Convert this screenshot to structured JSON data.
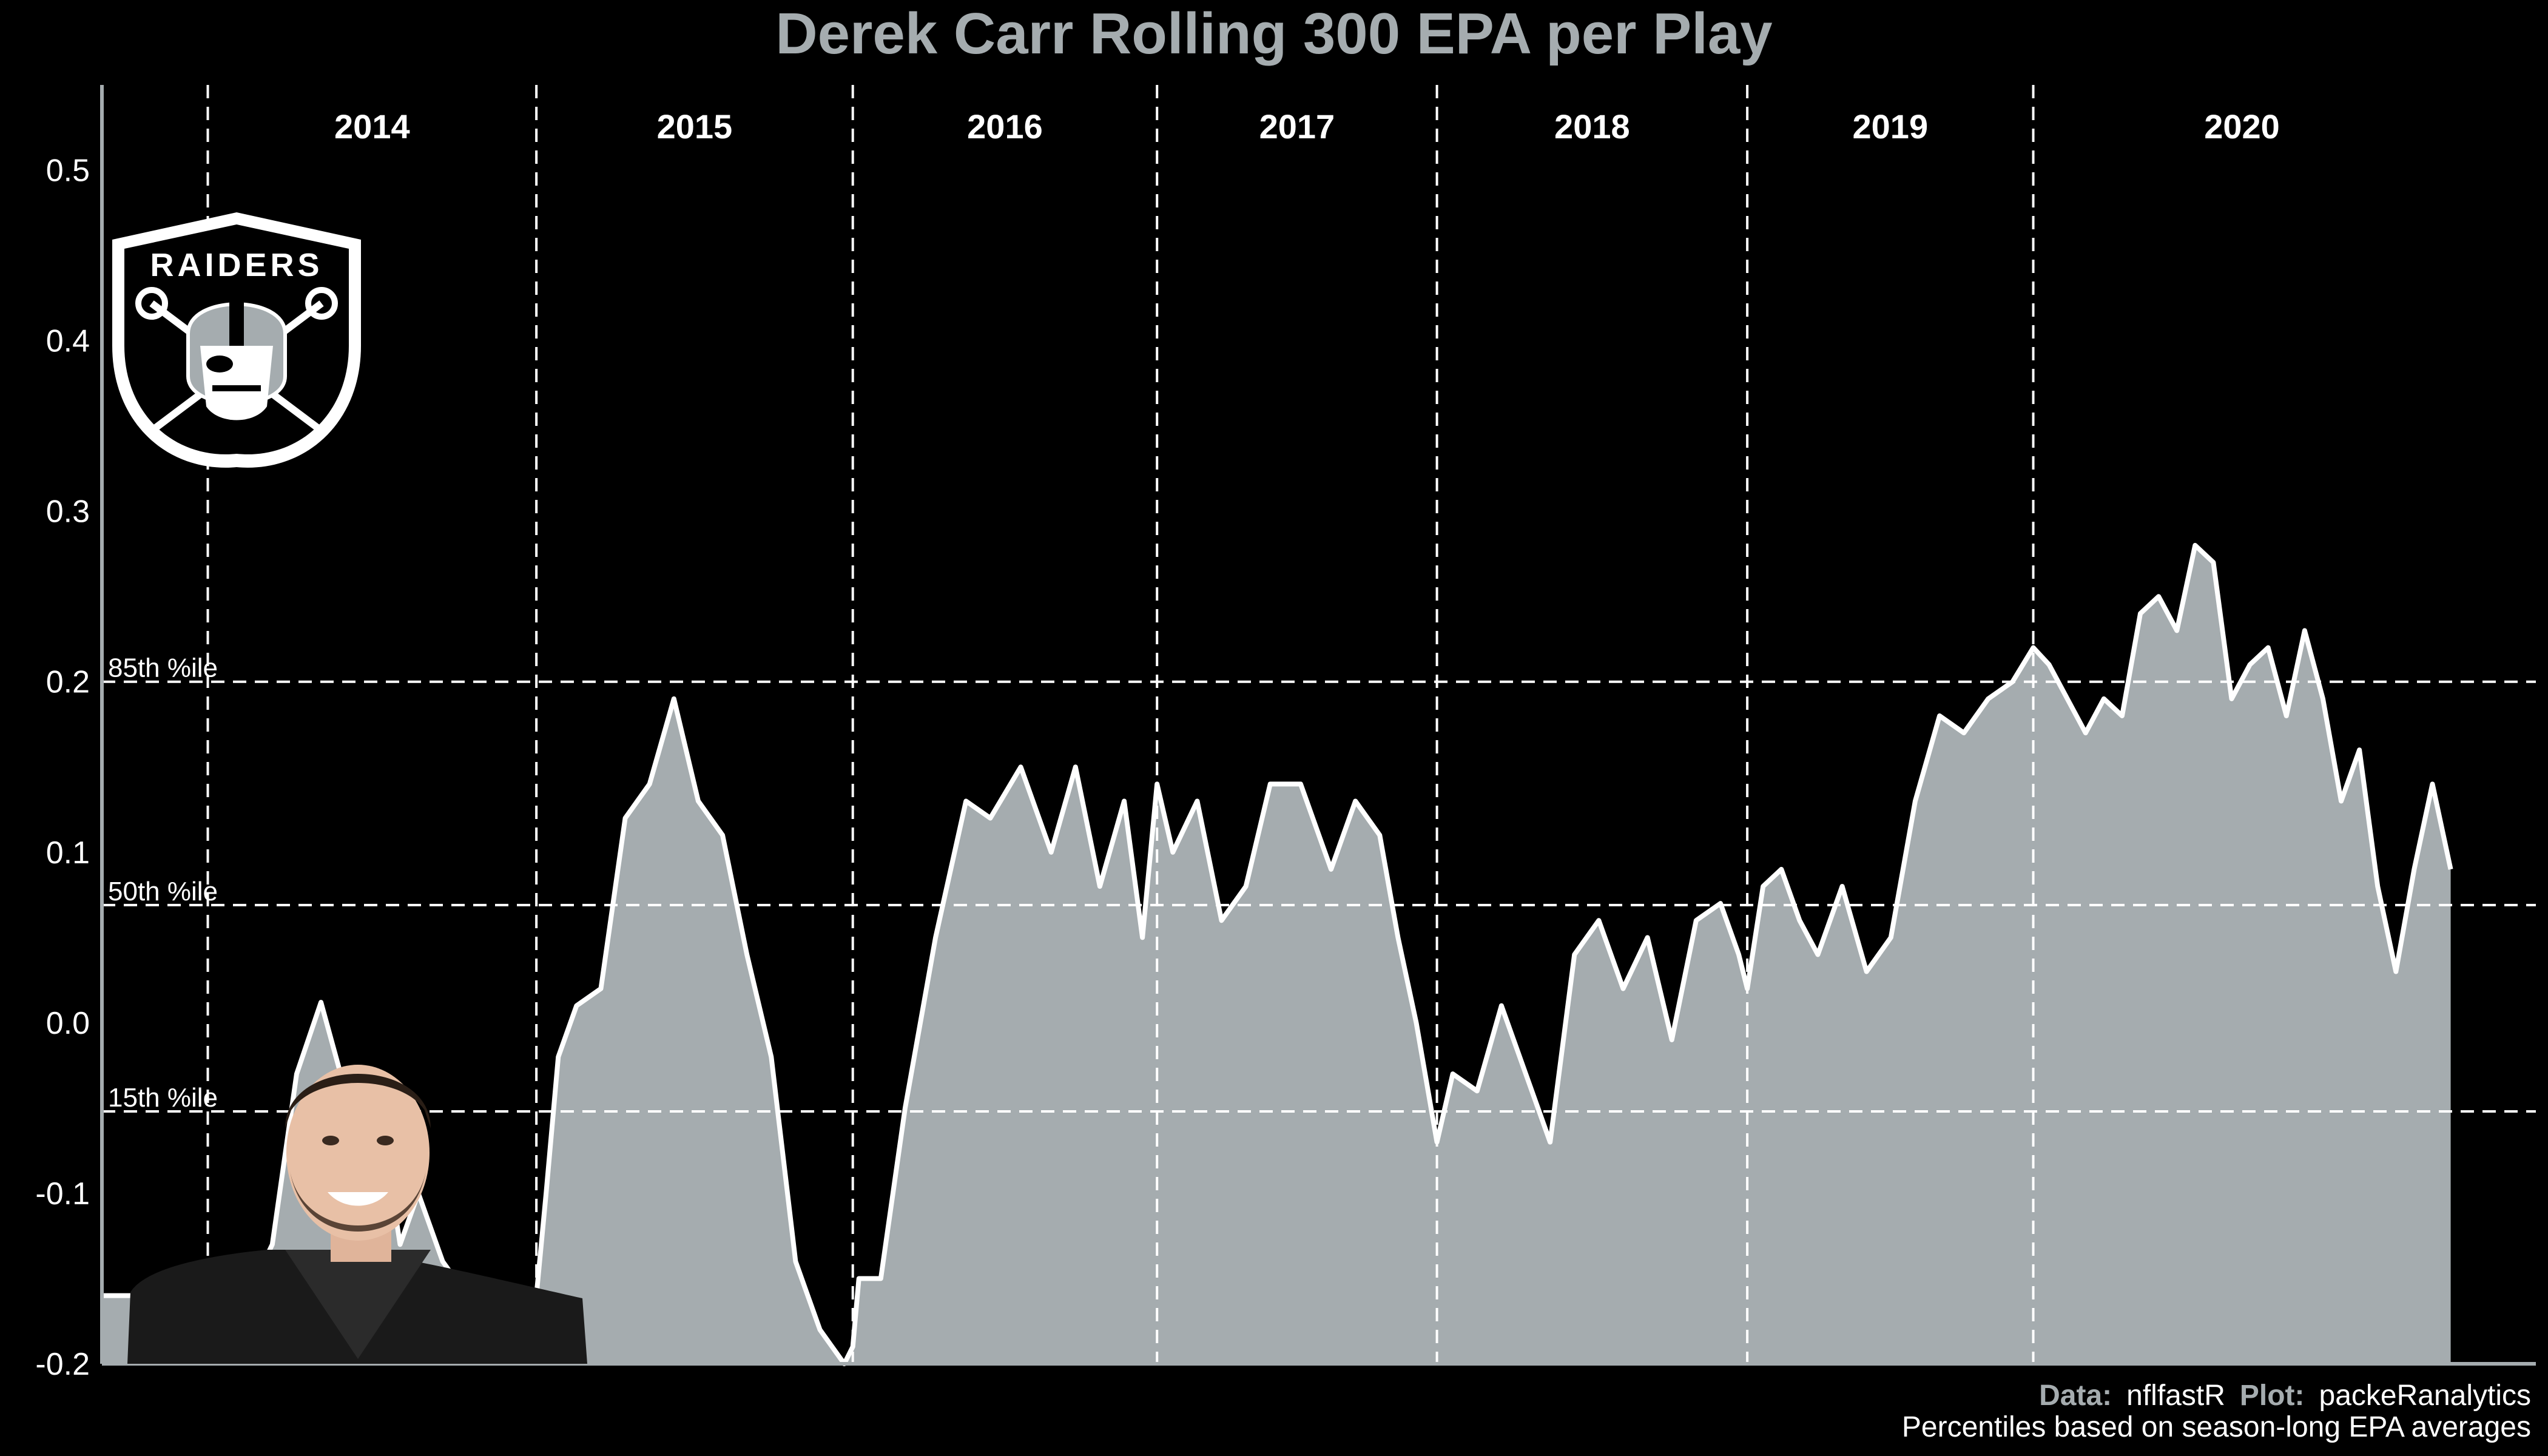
{
  "chart_data": {
    "type": "area",
    "title": "Derek Carr Rolling 300 EPA per Play",
    "xlabel": "",
    "ylabel": "",
    "ylim": [
      -0.2,
      0.55
    ],
    "y_ticks": [
      "-0.2",
      "-0.1",
      "0.0",
      "0.1",
      "0.2",
      "0.3",
      "0.4",
      "0.5"
    ],
    "grid": false,
    "fill_color": "#A5ACAF",
    "line_color": "#ffffff",
    "background": "#000000",
    "seasons": [
      "2014",
      "2015",
      "2016",
      "2017",
      "2018",
      "2019",
      "2020"
    ],
    "season_breaks": [
      0.087,
      0.357,
      0.617,
      0.867,
      1.097,
      1.352,
      1.587
    ],
    "x_range": [
      0,
      2.0
    ],
    "percentiles": [
      {
        "label": "85th %ile",
        "value": 0.2
      },
      {
        "label": "50th %ile",
        "value": 0.069
      },
      {
        "label": "15th %ile",
        "value": -0.052
      }
    ],
    "series": [
      {
        "x": [
          0.0,
          0.087,
          0.12,
          0.14,
          0.16,
          0.18,
          0.2,
          0.215,
          0.23,
          0.245,
          0.26,
          0.28,
          0.3,
          0.32,
          0.335,
          0.35,
          0.357,
          0.365,
          0.375,
          0.39,
          0.41,
          0.43,
          0.45,
          0.47,
          0.49,
          0.51,
          0.53,
          0.55,
          0.57,
          0.59,
          0.6,
          0.61,
          0.617,
          0.622,
          0.64,
          0.66,
          0.685,
          0.71,
          0.73,
          0.755,
          0.78,
          0.8,
          0.82,
          0.84,
          0.855,
          0.867,
          0.88,
          0.9,
          0.92,
          0.94,
          0.96,
          0.985,
          1.01,
          1.03,
          1.05,
          1.065,
          1.08,
          1.097,
          1.11,
          1.13,
          1.15,
          1.17,
          1.19,
          1.21,
          1.23,
          1.25,
          1.27,
          1.29,
          1.31,
          1.33,
          1.345,
          1.352,
          1.365,
          1.38,
          1.395,
          1.41,
          1.43,
          1.45,
          1.47,
          1.49,
          1.51,
          1.53,
          1.55,
          1.57,
          1.587,
          1.6,
          1.615,
          1.63,
          1.645,
          1.66,
          1.675,
          1.69,
          1.705,
          1.72,
          1.735,
          1.75,
          1.765,
          1.78,
          1.795,
          1.81,
          1.825,
          1.84,
          1.855,
          1.87,
          1.885,
          1.9,
          1.915,
          1.93
        ],
        "values": [
          -0.16,
          -0.16,
          -0.16,
          -0.13,
          -0.03,
          0.012,
          -0.04,
          -0.09,
          -0.06,
          -0.13,
          -0.1,
          -0.14,
          -0.16,
          -0.16,
          -0.16,
          -0.16,
          -0.16,
          -0.1,
          -0.02,
          0.01,
          0.02,
          0.12,
          0.14,
          0.19,
          0.13,
          0.11,
          0.04,
          -0.02,
          -0.14,
          -0.18,
          -0.19,
          -0.2,
          -0.19,
          -0.15,
          -0.15,
          -0.05,
          0.05,
          0.13,
          0.12,
          0.15,
          0.1,
          0.15,
          0.08,
          0.13,
          0.05,
          0.14,
          0.1,
          0.13,
          0.06,
          0.08,
          0.14,
          0.14,
          0.09,
          0.13,
          0.11,
          0.05,
          0.0,
          -0.07,
          -0.03,
          -0.04,
          0.01,
          -0.03,
          -0.07,
          0.04,
          0.06,
          0.02,
          0.05,
          -0.01,
          0.06,
          0.07,
          0.04,
          0.02,
          0.08,
          0.09,
          0.06,
          0.04,
          0.08,
          0.03,
          0.05,
          0.13,
          0.18,
          0.17,
          0.19,
          0.2,
          0.22,
          0.21,
          0.19,
          0.17,
          0.19,
          0.18,
          0.24,
          0.25,
          0.23,
          0.28,
          0.27,
          0.19,
          0.21,
          0.22,
          0.18,
          0.23,
          0.19,
          0.13,
          0.16,
          0.08,
          0.03,
          0.09,
          0.14,
          0.09
        ]
      }
    ]
  },
  "captions": {
    "data_label": "Data:",
    "data_value": "nflfastR",
    "plot_label": "Plot:",
    "plot_value": "packeRanalytics",
    "note": "Percentiles based on season-long EPA averages"
  },
  "logo": {
    "team_text": "RAIDERS"
  }
}
